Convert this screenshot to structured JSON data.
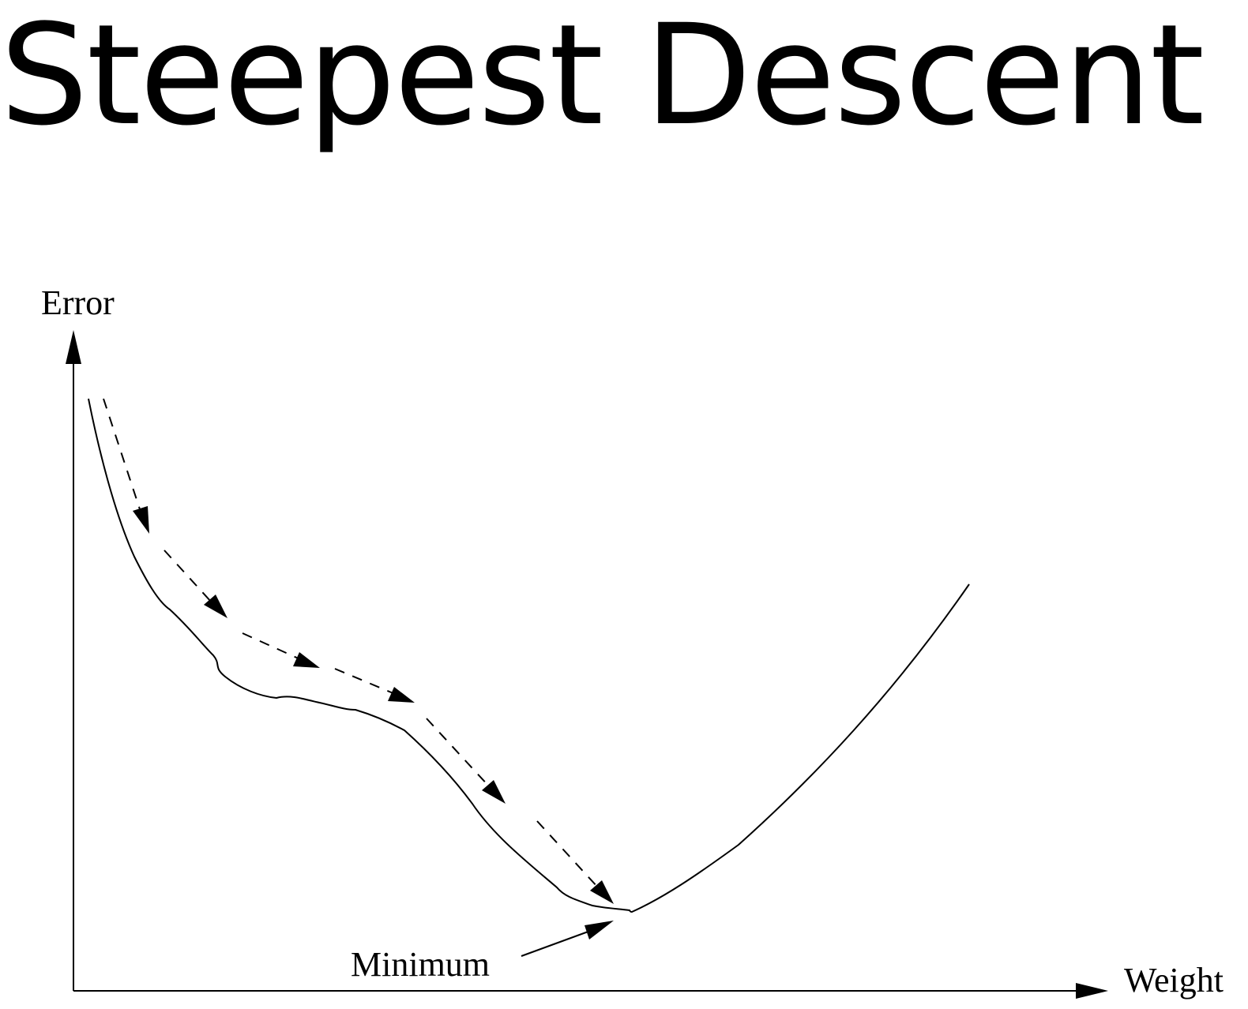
{
  "title": "Steepest Descent",
  "diagram": {
    "y_axis_label": "Error",
    "x_axis_label": "Weight",
    "minimum_label": "Minimum",
    "stroke_color": "#000000",
    "background_color": "#ffffff"
  }
}
